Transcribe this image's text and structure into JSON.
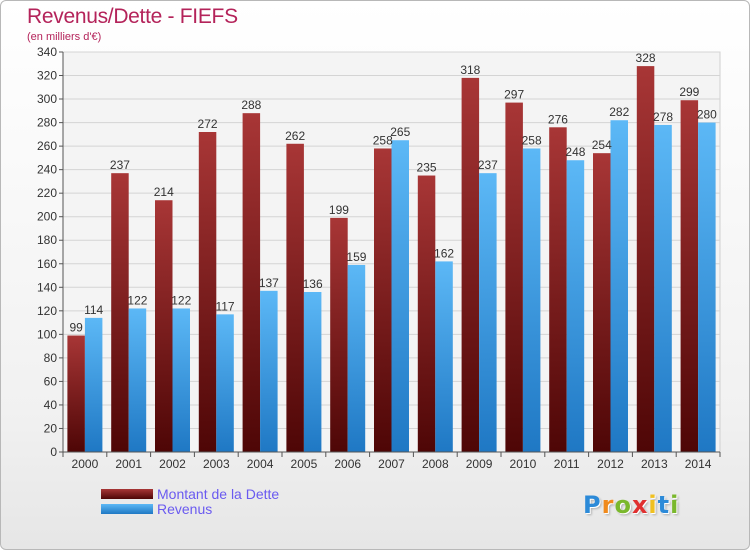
{
  "chart_data": {
    "type": "bar",
    "title": "Revenus/Dette - FIEFS",
    "subtitle": "(en milliers d'€)",
    "categories": [
      "2000",
      "2001",
      "2002",
      "2003",
      "2004",
      "2005",
      "2006",
      "2007",
      "2008",
      "2009",
      "2010",
      "2011",
      "2012",
      "2013",
      "2014"
    ],
    "series": [
      {
        "name": "Montant de la Dette",
        "color": "#8a1a1a",
        "values": [
          99,
          237,
          214,
          272,
          288,
          262,
          199,
          258,
          235,
          318,
          297,
          276,
          254,
          328,
          299
        ]
      },
      {
        "name": "Revenus",
        "color": "#3a9ee8",
        "values": [
          114,
          122,
          122,
          117,
          137,
          136,
          159,
          265,
          162,
          237,
          258,
          248,
          282,
          278,
          280
        ]
      }
    ],
    "ylim": [
      0,
      340
    ],
    "yticks": [
      0,
      20,
      40,
      60,
      80,
      100,
      120,
      140,
      160,
      180,
      200,
      220,
      240,
      260,
      280,
      300,
      320,
      340
    ],
    "grid": true,
    "legend_position": "bottom-left"
  },
  "logo": {
    "letters": [
      "P",
      "r",
      "o",
      "x",
      "i",
      "t",
      "i"
    ],
    "colors": [
      "#2c8ad8",
      "#f08a1c",
      "#7ab82c",
      "#e03030",
      "#f0c020",
      "#2c8ad8",
      "#7ab82c"
    ]
  }
}
